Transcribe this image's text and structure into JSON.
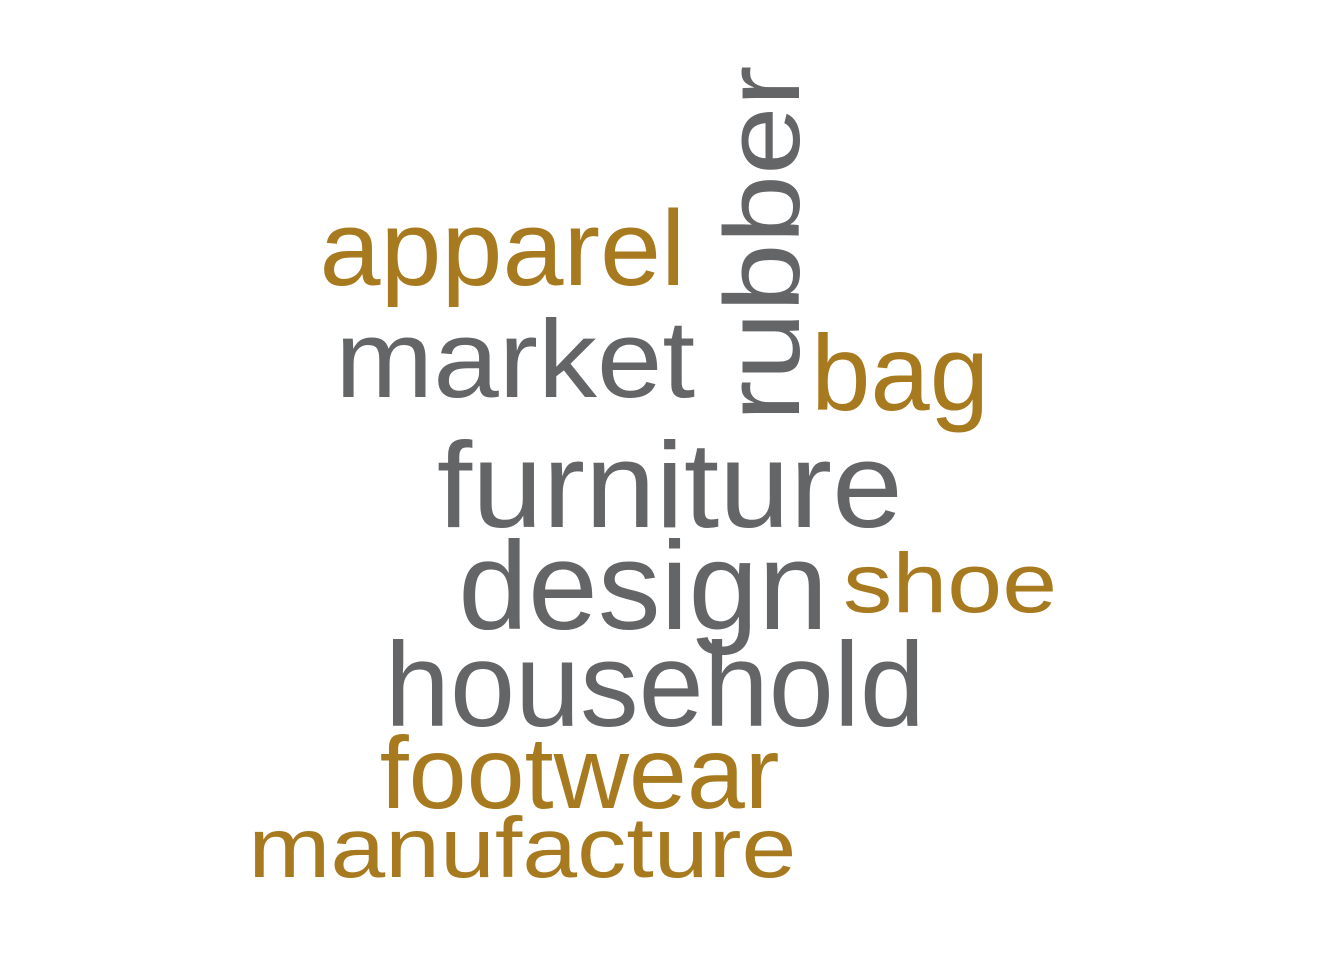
{
  "colors": {
    "gray": "#646567",
    "gold": "#a77a20",
    "background": "#ffffff"
  },
  "words": [
    {
      "id": "apparel",
      "text": "apparel",
      "color": "gold"
    },
    {
      "id": "rubber",
      "text": "rubber",
      "color": "gray"
    },
    {
      "id": "market",
      "text": "market",
      "color": "gray"
    },
    {
      "id": "bag",
      "text": "bag",
      "color": "gold"
    },
    {
      "id": "furniture",
      "text": "furniture",
      "color": "gray"
    },
    {
      "id": "design",
      "text": "design",
      "color": "gray"
    },
    {
      "id": "shoe",
      "text": "shoe",
      "color": "gold"
    },
    {
      "id": "household",
      "text": "household",
      "color": "gray"
    },
    {
      "id": "footwear",
      "text": "footwear",
      "color": "gold"
    },
    {
      "id": "manufacture",
      "text": "manufacture",
      "color": "gold"
    }
  ]
}
